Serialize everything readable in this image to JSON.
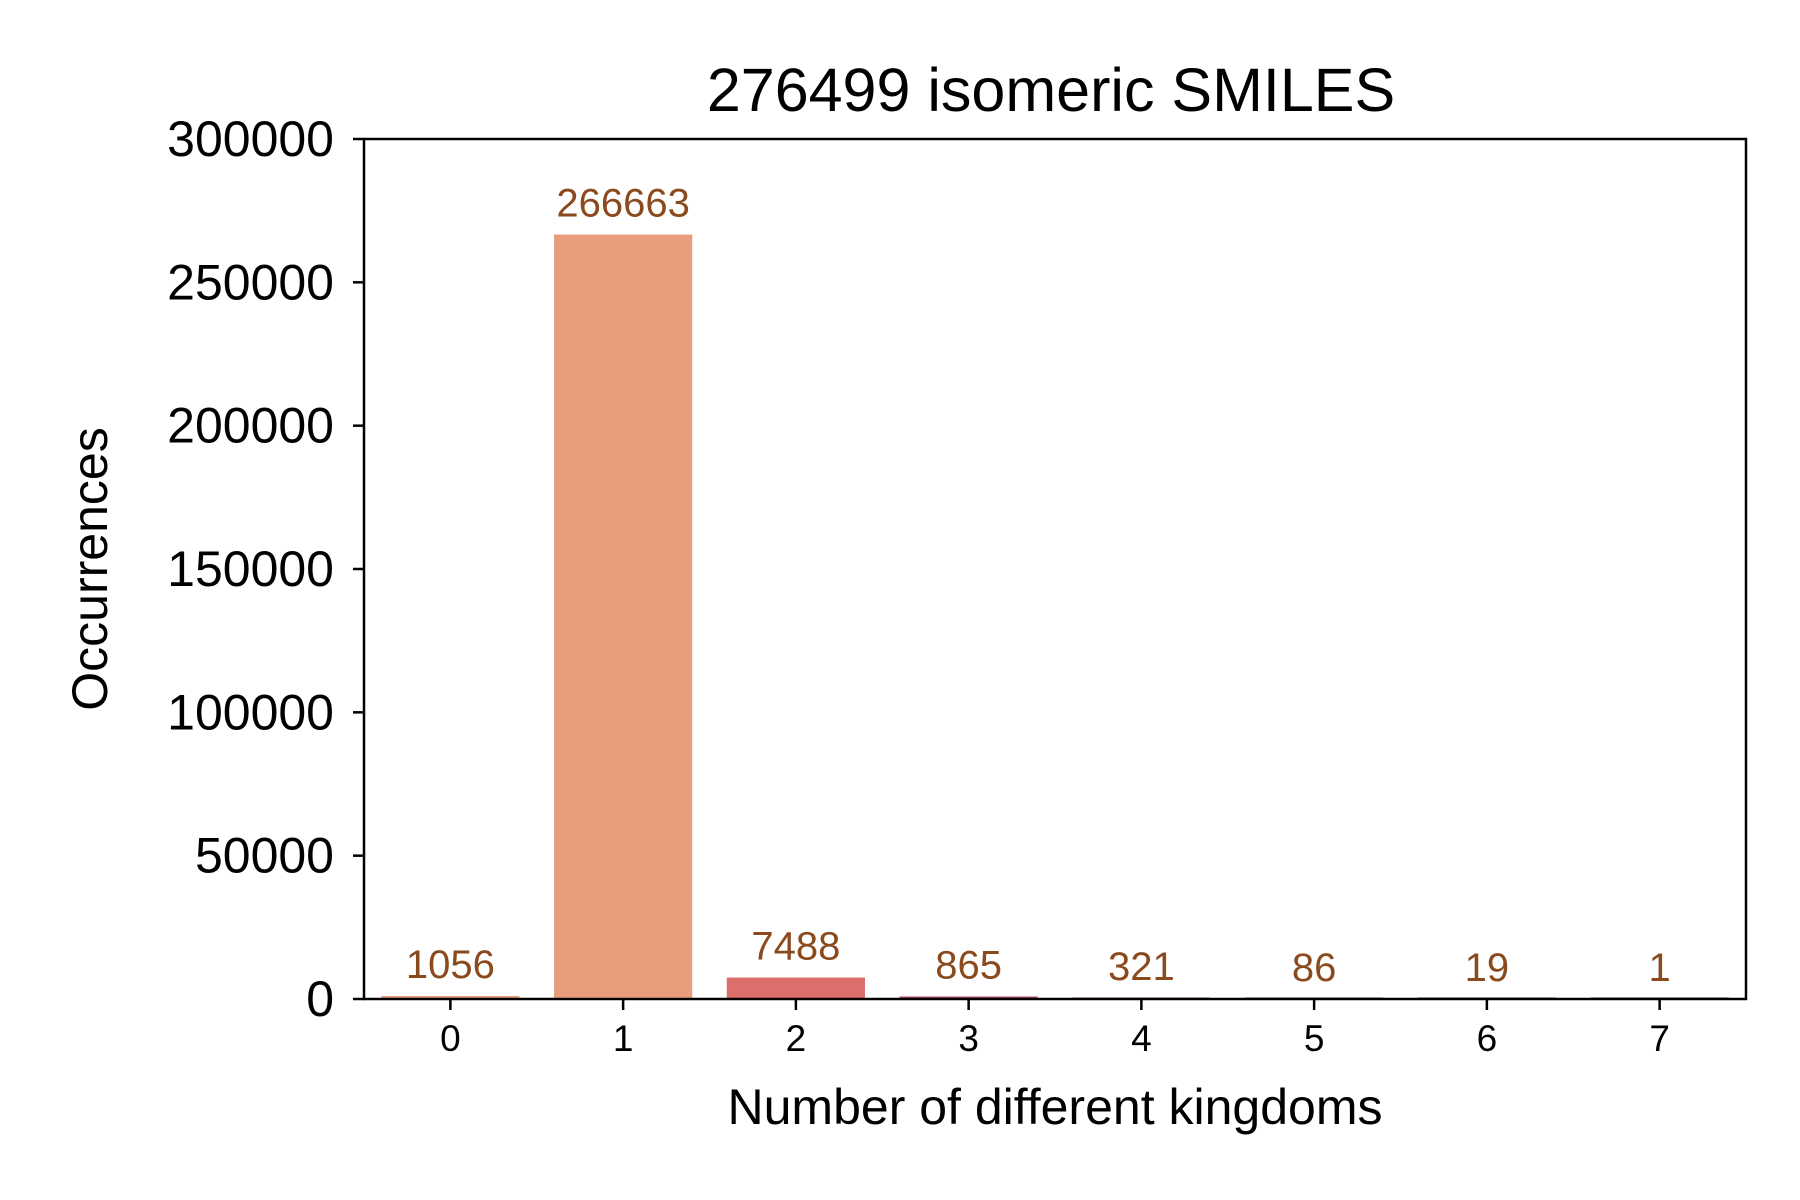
{
  "chart_data": {
    "type": "bar",
    "title": "276499 isomeric SMILES",
    "xlabel": "Number of different kingdoms",
    "ylabel": "Occurrences",
    "categories": [
      "0",
      "1",
      "2",
      "3",
      "4",
      "5",
      "6",
      "7"
    ],
    "values": [
      1056,
      266663,
      7488,
      865,
      321,
      86,
      19,
      1
    ],
    "data_labels": [
      "1056",
      "266663",
      "7488",
      "865",
      "321",
      "86",
      "19",
      "1"
    ],
    "ylim": [
      0,
      300000
    ],
    "yticks": [
      0,
      50000,
      100000,
      150000,
      200000,
      250000,
      300000
    ],
    "ytick_labels": [
      "0",
      "50000",
      "100000",
      "150000",
      "200000",
      "250000",
      "300000"
    ],
    "grid": false,
    "legend": "none",
    "colors": {
      "bars": [
        "#e8a07e",
        "#e89e7c",
        "#dc6e6c",
        "#b04a62",
        "#8a3a60",
        "#5e2a55",
        "#3c1f48",
        "#2a1838"
      ],
      "data_label": "#8b4a1e",
      "axis": "#000000"
    }
  }
}
